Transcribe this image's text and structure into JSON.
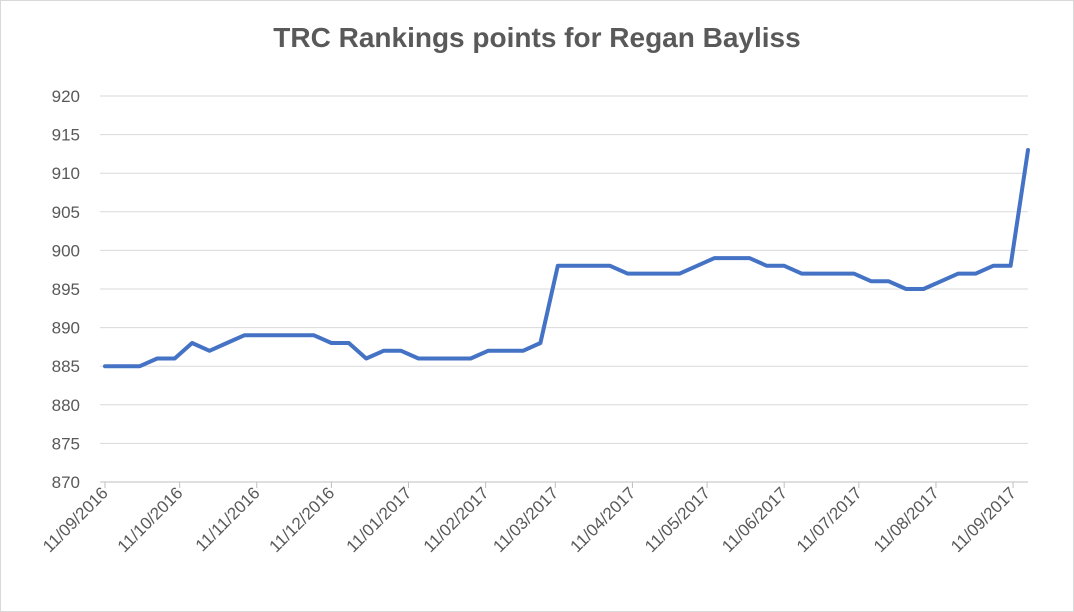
{
  "chart_data": {
    "type": "line",
    "title": "TRC Rankings points for Regan Bayliss",
    "xlabel": "",
    "ylabel": "",
    "ylim": [
      870,
      920
    ],
    "y_ticks": [
      "870",
      "875",
      "880",
      "885",
      "890",
      "895",
      "900",
      "905",
      "910",
      "915",
      "920"
    ],
    "x_tick_labels": [
      "11/09/2016",
      "11/10/2016",
      "11/11/2016",
      "11/12/2016",
      "11/01/2017",
      "11/02/2017",
      "11/03/2017",
      "11/04/2017",
      "11/05/2017",
      "11/06/2017",
      "11/07/2017",
      "11/08/2017",
      "11/09/2017"
    ],
    "grid": true,
    "legend": "none",
    "color": "#4472C4",
    "series": [
      {
        "x": [
          "11/09/2016",
          "18/09/2016",
          "25/09/2016",
          "02/10/2016",
          "09/10/2016",
          "16/10/2016",
          "23/10/2016",
          "30/10/2016",
          "06/11/2016",
          "13/11/2016",
          "20/11/2016",
          "27/11/2016",
          "04/12/2016",
          "11/12/2016",
          "18/12/2016",
          "25/12/2016",
          "01/01/2017",
          "08/01/2017",
          "15/01/2017",
          "22/01/2017",
          "29/01/2017",
          "05/02/2017",
          "12/02/2017",
          "19/02/2017",
          "26/02/2017",
          "05/03/2017",
          "12/03/2017",
          "19/03/2017",
          "26/03/2017",
          "02/04/2017",
          "09/04/2017",
          "16/04/2017",
          "23/04/2017",
          "30/04/2017",
          "07/05/2017",
          "14/05/2017",
          "21/05/2017",
          "28/05/2017",
          "04/06/2017",
          "11/06/2017",
          "18/06/2017",
          "25/06/2017",
          "02/07/2017",
          "09/07/2017",
          "16/07/2017",
          "23/07/2017",
          "30/07/2017",
          "06/08/2017",
          "13/08/2017",
          "20/08/2017",
          "27/08/2017",
          "03/09/2017",
          "10/09/2017",
          "17/09/2017"
        ],
        "values": [
          885,
          885,
          885,
          886,
          886,
          888,
          887,
          888,
          889,
          889,
          889,
          889,
          889,
          888,
          888,
          886,
          887,
          887,
          886,
          886,
          886,
          886,
          887,
          887,
          887,
          888,
          898,
          898,
          898,
          898,
          897,
          897,
          897,
          897,
          898,
          899,
          899,
          899,
          898,
          898,
          897,
          897,
          897,
          897,
          896,
          896,
          895,
          895,
          896,
          897,
          897,
          898,
          898,
          913
        ]
      }
    ]
  }
}
